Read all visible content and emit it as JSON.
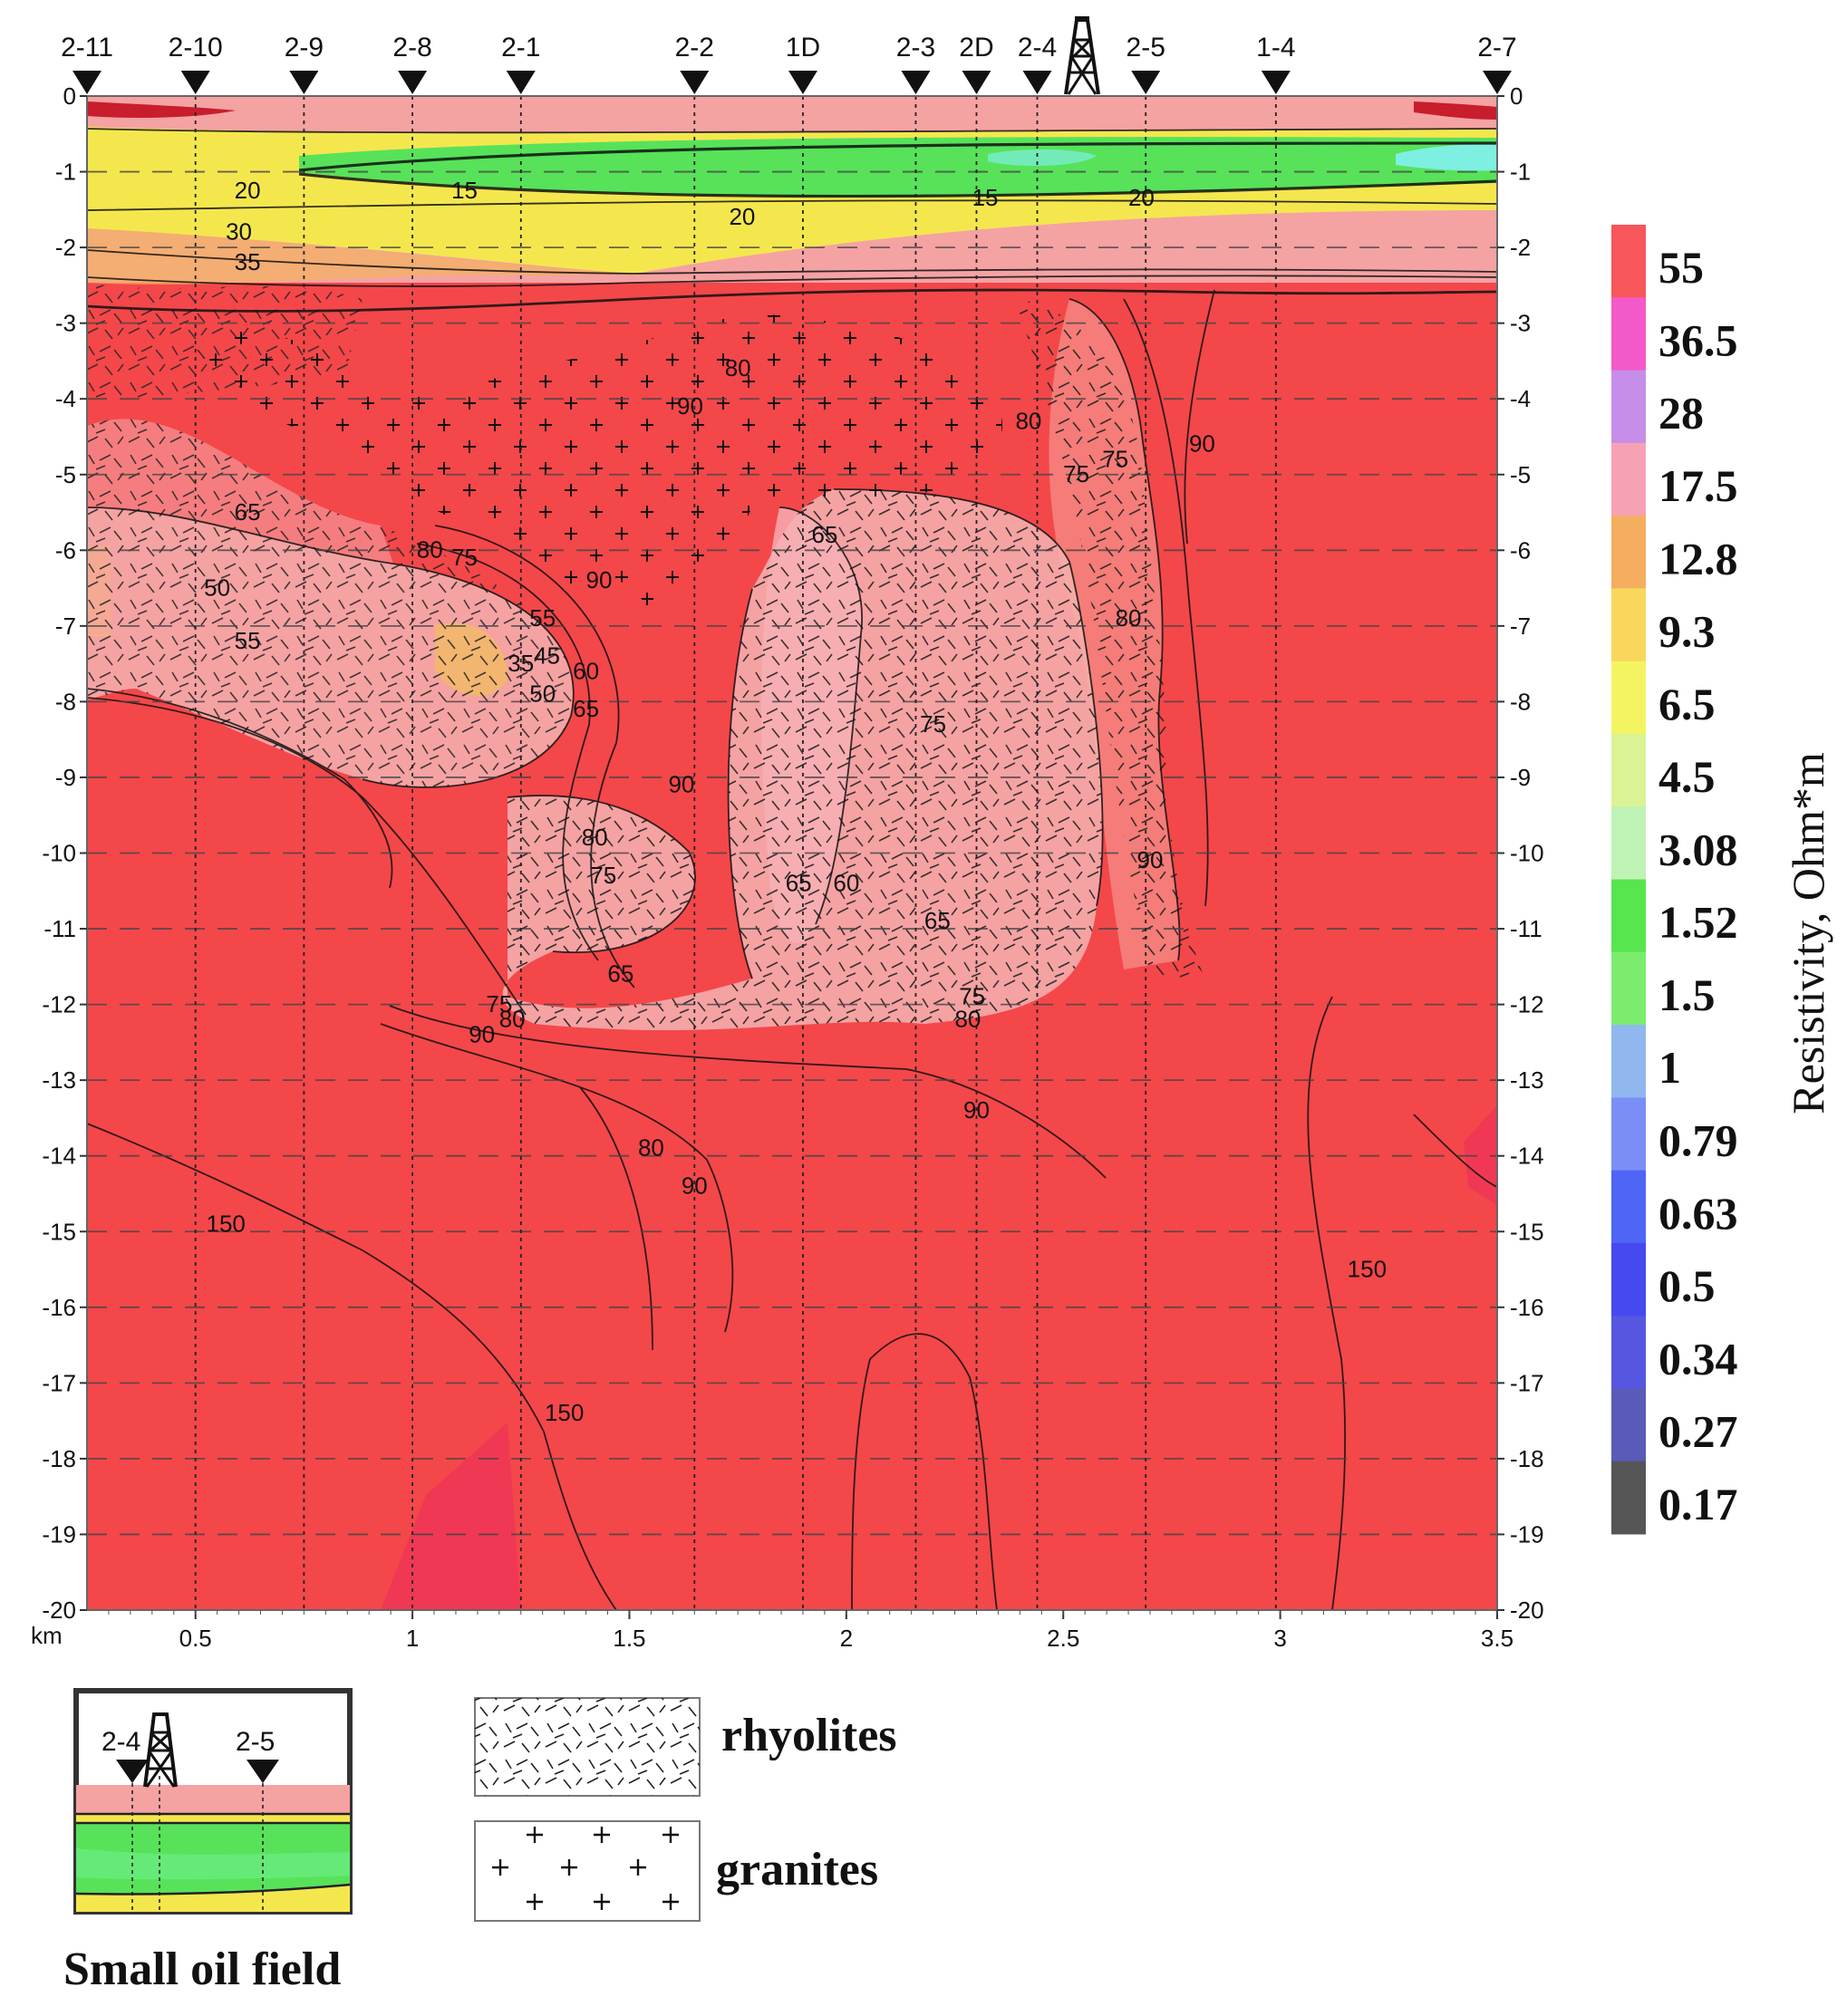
{
  "stations": [
    {
      "label": "2-11",
      "x": 0.25
    },
    {
      "label": "2-10",
      "x": 0.5
    },
    {
      "label": "2-9",
      "x": 0.75
    },
    {
      "label": "2-8",
      "x": 1.0
    },
    {
      "label": "2-1",
      "x": 1.25
    },
    {
      "label": "2-2",
      "x": 1.65
    },
    {
      "label": "1D",
      "x": 1.9
    },
    {
      "label": "2-3",
      "x": 2.16
    },
    {
      "label": "2D",
      "x": 2.3
    },
    {
      "label": "2-4",
      "x": 2.44
    },
    {
      "label": "2-5",
      "x": 2.69
    },
    {
      "label": "1-4",
      "x": 2.99
    },
    {
      "label": "2-7",
      "x": 3.5
    }
  ],
  "x_axis": {
    "unit": "km",
    "ticks": [
      "0.5",
      "1",
      "1.5",
      "2",
      "2.5",
      "3",
      "3.5"
    ],
    "range": [
      0.25,
      3.5
    ]
  },
  "depth_axis": {
    "ticks": [
      "0",
      "-1",
      "-2",
      "-3",
      "-4",
      "-5",
      "-6",
      "-7",
      "-8",
      "-9",
      "-10",
      "-11",
      "-12",
      "-13",
      "-14",
      "-15",
      "-16",
      "-17",
      "-18",
      "-19",
      "-20"
    ],
    "range": [
      0,
      -20
    ]
  },
  "contour_labels": [
    {
      "text": "20",
      "x": 0.62,
      "d": -1.35
    },
    {
      "text": "15",
      "x": 1.12,
      "d": -1.35
    },
    {
      "text": "20",
      "x": 1.76,
      "d": -1.7
    },
    {
      "text": "15",
      "x": 2.32,
      "d": -1.45
    },
    {
      "text": "20",
      "x": 2.68,
      "d": -1.45
    },
    {
      "text": "30",
      "x": 0.6,
      "d": -1.9
    },
    {
      "text": "35",
      "x": 0.62,
      "d": -2.3
    },
    {
      "text": "80",
      "x": 1.75,
      "d": -3.7
    },
    {
      "text": "90",
      "x": 1.64,
      "d": -4.2
    },
    {
      "text": "80",
      "x": 2.42,
      "d": -4.4
    },
    {
      "text": "75",
      "x": 2.53,
      "d": -5.1
    },
    {
      "text": "75",
      "x": 2.62,
      "d": -4.9
    },
    {
      "text": "90",
      "x": 2.82,
      "d": -4.7
    },
    {
      "text": "65",
      "x": 0.62,
      "d": -5.6
    },
    {
      "text": "80",
      "x": 1.04,
      "d": -6.1
    },
    {
      "text": "75",
      "x": 1.12,
      "d": -6.2
    },
    {
      "text": "90",
      "x": 1.43,
      "d": -6.5
    },
    {
      "text": "65",
      "x": 1.95,
      "d": -5.9
    },
    {
      "text": "50",
      "x": 0.55,
      "d": -6.6
    },
    {
      "text": "55",
      "x": 0.62,
      "d": -7.3
    },
    {
      "text": "55",
      "x": 1.3,
      "d": -7.0
    },
    {
      "text": "35",
      "x": 1.25,
      "d": -7.6
    },
    {
      "text": "45",
      "x": 1.31,
      "d": -7.5
    },
    {
      "text": "60",
      "x": 1.4,
      "d": -7.7
    },
    {
      "text": "50",
      "x": 1.3,
      "d": -8.0
    },
    {
      "text": "65",
      "x": 1.4,
      "d": -8.2
    },
    {
      "text": "80",
      "x": 2.65,
      "d": -7.0
    },
    {
      "text": "75",
      "x": 2.2,
      "d": -8.4
    },
    {
      "text": "90",
      "x": 1.62,
      "d": -9.2
    },
    {
      "text": "80",
      "x": 1.42,
      "d": -9.9
    },
    {
      "text": "75",
      "x": 1.44,
      "d": -10.4
    },
    {
      "text": "65",
      "x": 1.89,
      "d": -10.5
    },
    {
      "text": "60",
      "x": 2.0,
      "d": -10.5
    },
    {
      "text": "65",
      "x": 2.21,
      "d": -11.0
    },
    {
      "text": "90",
      "x": 2.7,
      "d": -10.2
    },
    {
      "text": "65",
      "x": 1.48,
      "d": -11.7
    },
    {
      "text": "75",
      "x": 1.2,
      "d": -12.1
    },
    {
      "text": "80",
      "x": 1.23,
      "d": -12.3
    },
    {
      "text": "90",
      "x": 1.16,
      "d": -12.5
    },
    {
      "text": "75",
      "x": 2.29,
      "d": -12.0
    },
    {
      "text": "80",
      "x": 2.28,
      "d": -12.3
    },
    {
      "text": "90",
      "x": 2.3,
      "d": -13.5
    },
    {
      "text": "80",
      "x": 1.55,
      "d": -14.0
    },
    {
      "text": "90",
      "x": 1.65,
      "d": -14.5
    },
    {
      "text": "150",
      "x": 0.57,
      "d": -15.0
    },
    {
      "text": "150",
      "x": 1.35,
      "d": -17.5
    },
    {
      "text": "150",
      "x": 3.2,
      "d": -15.6
    }
  ],
  "color_scale": {
    "title": "Resistivity, Ohm*m",
    "steps": [
      {
        "label": "55",
        "color": "#f7565a"
      },
      {
        "label": "36.5",
        "color": "#f459c9"
      },
      {
        "label": "28",
        "color": "#c78ee9"
      },
      {
        "label": "17.5",
        "color": "#f7a2b4"
      },
      {
        "label": "12.8",
        "color": "#f5ae5f"
      },
      {
        "label": "9.3",
        "color": "#f9d75c"
      },
      {
        "label": "6.5",
        "color": "#f4f462"
      },
      {
        "label": "4.5",
        "color": "#dcf296"
      },
      {
        "label": "3.08",
        "color": "#bff3b5"
      },
      {
        "label": "1.52",
        "color": "#57e64e"
      },
      {
        "label": "1.5",
        "color": "#7bec6e"
      },
      {
        "label": "1",
        "color": "#91b7ef"
      },
      {
        "label": "0.79",
        "color": "#7a8ef5"
      },
      {
        "label": "0.63",
        "color": "#4e65f5"
      },
      {
        "label": "0.5",
        "color": "#4649f0"
      },
      {
        "label": "0.34",
        "color": "#5656e0"
      },
      {
        "label": "0.27",
        "color": "#5a5ab9"
      },
      {
        "label": "0.17",
        "color": "#555555"
      }
    ]
  },
  "inset": {
    "stations": [
      "2-4",
      "2-5"
    ],
    "caption": "Small oil field"
  },
  "legend": {
    "rhyolites": "rhyolites",
    "granites": "granites"
  },
  "colors": {
    "background_red": "#f4474a",
    "pink": "#f5a2a3",
    "yellow": "#f4e74e",
    "green": "#57e25a",
    "cyan": "#7ef0e1"
  }
}
